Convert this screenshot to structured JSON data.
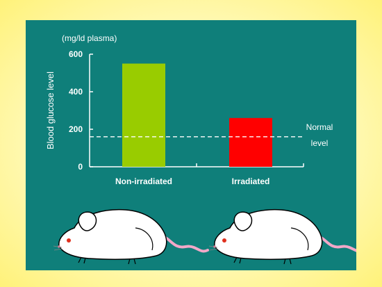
{
  "chart_data": {
    "type": "bar",
    "unit_label": "(mg/ld plasma)",
    "ylabel": "Blood glucose level",
    "xlabel": "",
    "categories": [
      "Non-irradiated",
      "Irradiated"
    ],
    "values": [
      550,
      260
    ],
    "bar_colors": [
      "#99cc00",
      "#ff0000"
    ],
    "ylim": [
      0,
      600
    ],
    "yticks": [
      0,
      200,
      400,
      600
    ],
    "reference_line": {
      "value": 160,
      "label_line1": "Normal",
      "label_line2": "level",
      "style": "dashed"
    }
  },
  "colors": {
    "panel_bg": "#0f7f7a",
    "axis": "#ffffff",
    "mouse_body": "#ffffff",
    "mouse_tail": "#f2a8c8",
    "mouse_eye": "#e0301e"
  },
  "illustrations": [
    "white-mouse-left",
    "white-mouse-right"
  ]
}
